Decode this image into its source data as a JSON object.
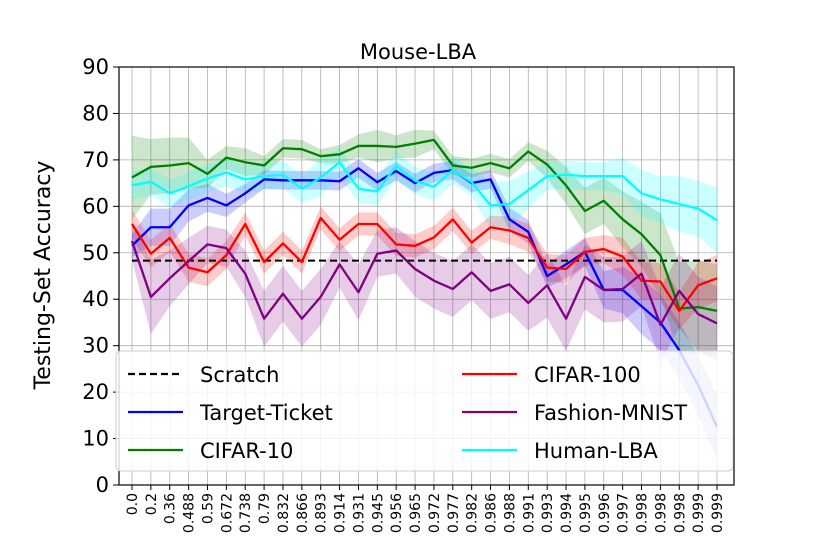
{
  "chart_data": {
    "type": "line",
    "title": "Mouse-LBA",
    "xlabel": "",
    "ylabel": "Testing-Set Accuracy",
    "ylim": [
      0,
      90
    ],
    "yticks": [
      0,
      10,
      20,
      30,
      40,
      50,
      60,
      70,
      80,
      90
    ],
    "grid": true,
    "legend_position": "bottom",
    "x_tick_labels": [
      "0.0",
      "0.2",
      "0.36",
      "0.488",
      "0.59",
      "0.672",
      "0.738",
      "0.79",
      "0.832",
      "0.866",
      "0.893",
      "0.914",
      "0.931",
      "0.945",
      "0.956",
      "0.965",
      "0.972",
      "0.977",
      "0.982",
      "0.986",
      "0.988",
      "0.991",
      "0.993",
      "0.994",
      "0.995",
      "0.996",
      "0.997",
      "0.998",
      "0.998",
      "0.998",
      "0.999",
      "0.999"
    ],
    "baseline": {
      "name": "Scratch",
      "value": 48.3,
      "color": "#000000",
      "dashed": true
    },
    "series": [
      {
        "name": "Target-Ticket",
        "color": "#0000ff",
        "values": [
          51.5,
          55.5,
          55.5,
          60.2,
          61.8,
          60.2,
          62.8,
          65.8,
          65.6,
          65.6,
          65.6,
          65.4,
          68.2,
          65.2,
          67.6,
          65.0,
          67.2,
          67.8,
          65.0,
          65.8,
          57.2,
          54.5,
          45.0,
          47.5,
          50.2,
          42.0,
          42.0,
          38.5,
          35.0,
          29.0,
          21.5,
          12.5
        ],
        "band": [
          2.5,
          4.0,
          4.0,
          3.5,
          3.0,
          2.5,
          2.0,
          2.0,
          2.0,
          2.0,
          2.0,
          2.0,
          2.0,
          2.0,
          2.0,
          2.0,
          2.0,
          2.0,
          2.0,
          2.0,
          2.5,
          2.5,
          2.5,
          3.0,
          3.0,
          4.0,
          5.0,
          6.0,
          6.0,
          6.0,
          6.5,
          7.0
        ]
      },
      {
        "name": "CIFAR-10",
        "color": "#008000",
        "values": [
          66.2,
          68.5,
          68.8,
          69.3,
          67.0,
          70.5,
          69.5,
          68.8,
          72.5,
          72.3,
          70.8,
          71.2,
          73.0,
          73.0,
          72.8,
          73.5,
          74.3,
          68.8,
          68.3,
          69.3,
          68.2,
          71.8,
          69.0,
          64.5,
          59.0,
          61.2,
          57.2,
          54.0,
          49.5,
          38.0,
          38.3,
          37.5
        ],
        "band": [
          9.0,
          6.0,
          6.0,
          5.5,
          3.0,
          2.5,
          3.0,
          2.0,
          2.0,
          2.0,
          1.5,
          2.0,
          2.5,
          3.5,
          2.5,
          3.0,
          2.0,
          2.0,
          2.0,
          2.0,
          2.0,
          2.0,
          3.0,
          4.0,
          5.0,
          5.0,
          6.0,
          7.0,
          9.0,
          10.0,
          10.0,
          10.0
        ]
      },
      {
        "name": "Human-LBA",
        "color": "#00ffff",
        "values": [
          64.5,
          65.3,
          62.8,
          64.3,
          66.0,
          67.3,
          65.8,
          66.5,
          66.8,
          63.8,
          66.2,
          69.5,
          63.8,
          63.2,
          68.8,
          65.5,
          64.2,
          67.8,
          65.2,
          60.2,
          60.5,
          63.5,
          66.5,
          66.8,
          66.5,
          66.5,
          66.5,
          62.8,
          61.5,
          60.5,
          59.5,
          57.0
        ],
        "band": [
          3.0,
          3.0,
          3.0,
          3.0,
          3.0,
          3.0,
          3.0,
          3.0,
          3.0,
          3.0,
          4.0,
          3.0,
          3.0,
          3.0,
          3.0,
          3.0,
          3.0,
          3.0,
          3.0,
          5.0,
          5.0,
          4.0,
          3.0,
          3.0,
          3.0,
          3.0,
          4.0,
          5.0,
          5.0,
          6.0,
          6.0,
          7.0
        ]
      },
      {
        "name": "CIFAR-100",
        "color": "#ff0000",
        "values": [
          56.2,
          49.8,
          53.2,
          46.8,
          45.8,
          49.5,
          56.2,
          48.0,
          52.0,
          48.0,
          57.5,
          52.8,
          56.2,
          56.2,
          51.8,
          51.5,
          53.3,
          57.2,
          52.2,
          55.5,
          54.8,
          53.2,
          46.8,
          46.5,
          50.2,
          50.8,
          49.2,
          44.0,
          43.8,
          37.5,
          43.0,
          44.5
        ],
        "band": [
          3.0,
          3.0,
          3.0,
          3.0,
          3.0,
          3.0,
          2.5,
          2.5,
          2.5,
          2.5,
          2.5,
          2.5,
          2.5,
          2.5,
          2.5,
          2.5,
          2.5,
          2.5,
          2.5,
          2.5,
          3.0,
          3.0,
          3.0,
          3.0,
          3.0,
          3.0,
          4.0,
          4.0,
          4.0,
          4.0,
          5.0,
          5.0
        ]
      },
      {
        "name": "Fashion-MNIST",
        "color": "#800080",
        "values": [
          52.5,
          40.5,
          44.5,
          48.2,
          51.8,
          51.0,
          45.5,
          35.8,
          41.2,
          35.8,
          40.5,
          47.5,
          41.5,
          49.8,
          50.5,
          46.5,
          44.0,
          42.2,
          45.8,
          41.8,
          43.2,
          39.2,
          43.0,
          35.8,
          44.8,
          42.0,
          42.2,
          45.5,
          34.5,
          41.8,
          36.8,
          34.8
        ],
        "band": [
          4.0,
          8.0,
          6.0,
          5.0,
          4.0,
          4.0,
          5.0,
          6.0,
          6.0,
          6.0,
          6.0,
          5.0,
          6.0,
          5.0,
          5.0,
          6.0,
          6.0,
          6.0,
          6.0,
          6.0,
          6.0,
          6.0,
          7.0,
          7.0,
          7.0,
          7.0,
          7.0,
          7.0,
          8.0,
          8.0,
          8.0,
          8.0
        ]
      }
    ],
    "legend_order": [
      "Scratch",
      "CIFAR-100",
      "Target-Ticket",
      "Fashion-MNIST",
      "CIFAR-10",
      "Human-LBA"
    ]
  }
}
